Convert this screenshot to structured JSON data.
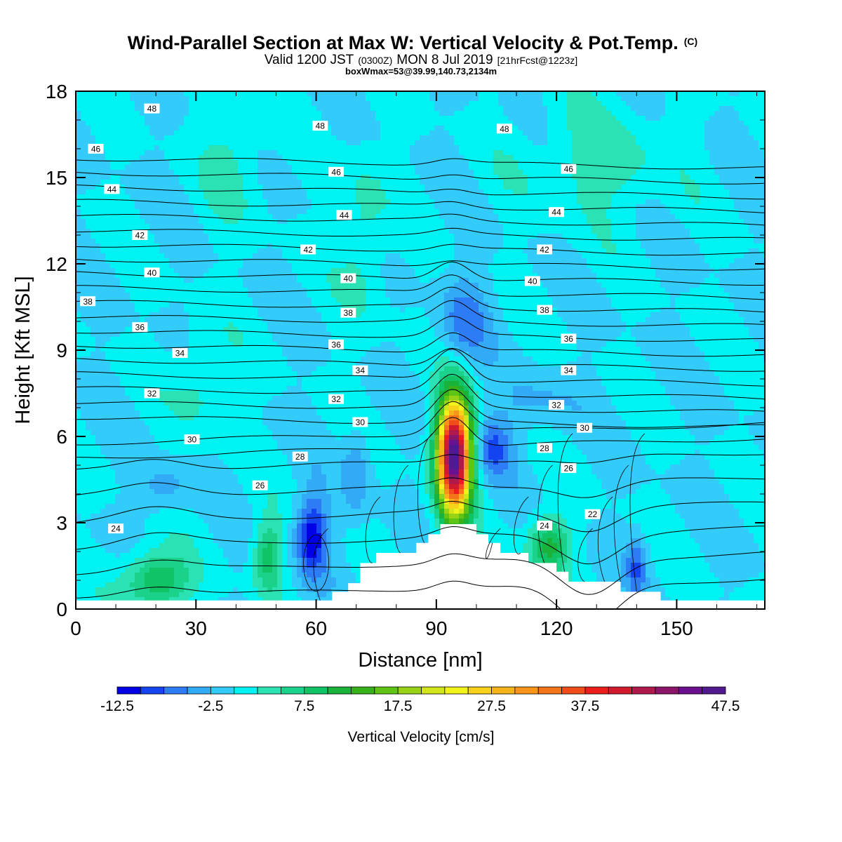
{
  "header": {
    "title": "Wind-Parallel Section at Max W: Vertical Velocity & Pot.Temp.",
    "title_mark": "(C)",
    "subtitle_a": "Valid 1200 JST",
    "subtitle_b": "(0300Z)",
    "subtitle_c": "MON 8 Jul 2019",
    "subtitle_d": "[21hrFcst@1223z]",
    "subtitle2": "boxWmax=53@39.99,140.73,2134m"
  },
  "chart_data": {
    "type": "heatmap",
    "xlabel": "Distance [nm]",
    "ylabel": "Height [Kft MSL]",
    "xlim": [
      0,
      172
    ],
    "ylim": [
      0,
      18
    ],
    "xticks": [
      "0",
      "30",
      "60",
      "90",
      "120",
      "150"
    ],
    "yticks": [
      "0",
      "3",
      "6",
      "9",
      "12",
      "15",
      "18"
    ],
    "colorbar": {
      "label": "Vertical Velocity [cm/s]",
      "tick_labels": [
        "-12.5",
        "-2.5",
        "7.5",
        "17.5",
        "27.5",
        "37.5",
        "47.5"
      ],
      "levels_min": -12.5,
      "levels_step": 2.5,
      "colors": [
        "#0000e6",
        "#1443f0",
        "#2e7cf5",
        "#33aaf6",
        "#33ccfa",
        "#00f3f3",
        "#2ae2b4",
        "#1bd28a",
        "#10c466",
        "#19b33c",
        "#37b21a",
        "#5fc414",
        "#96d215",
        "#d2e41a",
        "#f3f31c",
        "#f7d21a",
        "#f7b31a",
        "#f7951a",
        "#f4741a",
        "#f04d1a",
        "#ed1d1d",
        "#d11a2c",
        "#b01a4a",
        "#8b1568",
        "#6a1090",
        "#52188f"
      ]
    },
    "background_w": 0,
    "updrafts": [
      {
        "x": 94.5,
        "h": 5.3,
        "peak": 53,
        "half_width_nm": 4.2,
        "half_height_kft": 2.0
      },
      {
        "x": 20,
        "h": 1.0,
        "peak": 11,
        "half_width_nm": 8,
        "half_height_kft": 1.0
      },
      {
        "x": 48,
        "h": 1.8,
        "peak": 9,
        "half_width_nm": 3.5,
        "half_height_kft": 1.3
      },
      {
        "x": 118,
        "h": 2.2,
        "peak": 11,
        "half_width_nm": 5,
        "half_height_kft": 1.0
      },
      {
        "x": 32,
        "h": 8.0,
        "peak": 4,
        "half_width_nm": 7,
        "half_height_kft": 1.8
      },
      {
        "x": 72,
        "h": 13.0,
        "peak": 4,
        "half_width_nm": 6,
        "half_height_kft": 3.0
      },
      {
        "x": 130,
        "h": 15.5,
        "peak": 4,
        "half_width_nm": 18,
        "half_height_kft": 2.0
      },
      {
        "x": 40,
        "h": 16.0,
        "peak": 3.5,
        "half_width_nm": 8,
        "half_height_kft": 2.5
      }
    ],
    "downdrafts": [
      {
        "x": 59,
        "h": 2.5,
        "peak": -12,
        "half_width_nm": 4,
        "half_height_kft": 1.4
      },
      {
        "x": 104,
        "h": 5.6,
        "peak": -8,
        "half_width_nm": 5,
        "half_height_kft": 1.0
      },
      {
        "x": 97,
        "h": 10.0,
        "peak": -6,
        "half_width_nm": 6,
        "half_height_kft": 1.5
      },
      {
        "x": 70,
        "h": 4.8,
        "peak": -5,
        "half_width_nm": 3.5,
        "half_height_kft": 1.5
      },
      {
        "x": 22,
        "h": 4.2,
        "peak": -4,
        "half_width_nm": 6,
        "half_height_kft": 0.8
      },
      {
        "x": 140,
        "h": 1.5,
        "peak": -7,
        "half_width_nm": 2.5,
        "half_height_kft": 1.0
      },
      {
        "x": 115,
        "h": 7.2,
        "peak": -3,
        "half_width_nm": 10,
        "half_height_kft": 1.0
      }
    ],
    "terrain": [
      [
        0,
        0.3
      ],
      [
        64,
        0.3
      ],
      [
        64,
        0.6
      ],
      [
        68,
        0.6
      ],
      [
        68,
        0.9
      ],
      [
        71,
        0.9
      ],
      [
        71,
        1.6
      ],
      [
        75,
        1.6
      ],
      [
        75,
        1.95
      ],
      [
        85,
        1.95
      ],
      [
        85,
        2.3
      ],
      [
        88,
        2.3
      ],
      [
        88,
        2.6
      ],
      [
        91,
        2.6
      ],
      [
        91,
        2.95
      ],
      [
        100,
        2.95
      ],
      [
        100,
        2.6
      ],
      [
        103,
        2.6
      ],
      [
        103,
        2.3
      ],
      [
        106,
        2.3
      ],
      [
        106,
        1.95
      ],
      [
        113,
        1.95
      ],
      [
        113,
        1.6
      ],
      [
        120,
        1.6
      ],
      [
        120,
        1.3
      ],
      [
        123,
        1.3
      ],
      [
        123,
        0.95
      ],
      [
        136,
        0.95
      ],
      [
        136,
        0.6
      ],
      [
        146,
        0.6
      ],
      [
        146,
        0.3
      ],
      [
        172,
        0.3
      ]
    ],
    "theta_contours": {
      "min": 22,
      "max": 48,
      "step": 1,
      "labels": [
        {
          "value": 48,
          "x": 19,
          "y": 17.4
        },
        {
          "value": 48,
          "x": 61,
          "y": 16.8
        },
        {
          "value": 48,
          "x": 107,
          "y": 16.7
        },
        {
          "value": 46,
          "x": 5,
          "y": 16.0
        },
        {
          "value": 46,
          "x": 65,
          "y": 15.2
        },
        {
          "value": 46,
          "x": 123,
          "y": 15.3
        },
        {
          "value": 44,
          "x": 9,
          "y": 14.6
        },
        {
          "value": 44,
          "x": 67,
          "y": 13.7
        },
        {
          "value": 44,
          "x": 120,
          "y": 13.8
        },
        {
          "value": 42,
          "x": 16,
          "y": 13.0
        },
        {
          "value": 42,
          "x": 58,
          "y": 12.5
        },
        {
          "value": 42,
          "x": 117,
          "y": 12.5
        },
        {
          "value": 40,
          "x": 19,
          "y": 11.7
        },
        {
          "value": 40,
          "x": 68,
          "y": 11.5
        },
        {
          "value": 40,
          "x": 114,
          "y": 11.4
        },
        {
          "value": 38,
          "x": 3,
          "y": 10.7
        },
        {
          "value": 38,
          "x": 68,
          "y": 10.3
        },
        {
          "value": 38,
          "x": 117,
          "y": 10.4
        },
        {
          "value": 36,
          "x": 16,
          "y": 9.8
        },
        {
          "value": 36,
          "x": 65,
          "y": 9.2
        },
        {
          "value": 36,
          "x": 123,
          "y": 9.4
        },
        {
          "value": 34,
          "x": 26,
          "y": 8.9
        },
        {
          "value": 34,
          "x": 71,
          "y": 8.3
        },
        {
          "value": 34,
          "x": 123,
          "y": 8.3
        },
        {
          "value": 32,
          "x": 19,
          "y": 7.5
        },
        {
          "value": 32,
          "x": 65,
          "y": 7.3
        },
        {
          "value": 32,
          "x": 120,
          "y": 7.1
        },
        {
          "value": 30,
          "x": 29,
          "y": 5.9
        },
        {
          "value": 30,
          "x": 71,
          "y": 6.5
        },
        {
          "value": 30,
          "x": 127,
          "y": 6.3
        },
        {
          "value": 28,
          "x": 56,
          "y": 5.3
        },
        {
          "value": 28,
          "x": 117,
          "y": 5.6
        },
        {
          "value": 26,
          "x": 46,
          "y": 4.3
        },
        {
          "value": 26,
          "x": 123,
          "y": 4.9
        },
        {
          "value": 24,
          "x": 10,
          "y": 2.8
        },
        {
          "value": 24,
          "x": 117,
          "y": 2.9
        },
        {
          "value": 22,
          "x": 129,
          "y": 3.3
        }
      ]
    }
  }
}
